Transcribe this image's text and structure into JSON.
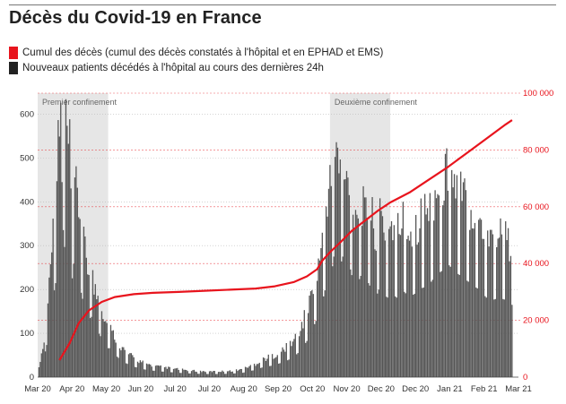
{
  "title": "Décès du Covid-19 en France",
  "legend": [
    {
      "label": "Cumul des décès (cumul des décès constatés à l'hôpital et en EPHAD et EMS)",
      "color": "#e8141d"
    },
    {
      "label": "Nouveaux patients décédés à l'hôpital au cours des dernières 24h",
      "color": "#222222"
    }
  ],
  "chart_data": {
    "type": "bar+line",
    "title": "Décès du Covid-19 en France",
    "x_tick_labels": [
      "Mar 20",
      "Apr 20",
      "May 20",
      "Jun 20",
      "Jul 20",
      "Jul 20",
      "Aug 20",
      "Sep 20",
      "Oct 20",
      "Nov 20",
      "Dec 20",
      "Dec 20",
      "Jan 21",
      "Feb 21",
      "Mar 21"
    ],
    "left_axis": {
      "range": [
        0,
        650
      ],
      "ticks": [
        0,
        100,
        200,
        300,
        400,
        500,
        600
      ],
      "tick_labels": [
        "0",
        "100",
        "200",
        "300",
        "400",
        "500",
        "600"
      ]
    },
    "right_axis": {
      "range": [
        0,
        100000
      ],
      "ticks": [
        0,
        20000,
        40000,
        60000,
        80000,
        100000
      ],
      "tick_labels": [
        "0",
        "20 000",
        "40 000",
        "60 000",
        "80 000",
        "100 000"
      ],
      "color": "#e8141d"
    },
    "shaded_periods": [
      {
        "label": "Premier confinement",
        "start_day": 0,
        "end_day": 55
      },
      {
        "label": "Deuxième confinement",
        "start_day": 228,
        "end_day": 275
      }
    ],
    "series": [
      {
        "name": "Nouveaux patients décédés à l'hôpital au cours des dernières 24h",
        "kind": "bar",
        "axis": "left",
        "color": "#555555",
        "start": "2020-03-01",
        "points": [
          [
            0,
            0
          ],
          [
            2,
            40
          ],
          [
            5,
            80
          ],
          [
            8,
            160
          ],
          [
            10,
            300
          ],
          [
            12,
            330
          ],
          [
            14,
            390
          ],
          [
            16,
            520
          ],
          [
            18,
            600
          ],
          [
            19,
            470
          ],
          [
            20,
            610
          ],
          [
            21,
            540
          ],
          [
            22,
            605
          ],
          [
            23,
            560
          ],
          [
            24,
            480
          ],
          [
            25,
            560
          ],
          [
            26,
            430
          ],
          [
            27,
            410
          ],
          [
            28,
            470
          ],
          [
            30,
            420
          ],
          [
            32,
            390
          ],
          [
            34,
            350
          ],
          [
            36,
            300
          ],
          [
            38,
            270
          ],
          [
            40,
            240
          ],
          [
            42,
            250
          ],
          [
            44,
            200
          ],
          [
            46,
            190
          ],
          [
            48,
            180
          ],
          [
            50,
            160
          ],
          [
            52,
            140
          ],
          [
            54,
            120
          ],
          [
            56,
            120
          ],
          [
            58,
            100
          ],
          [
            60,
            95
          ],
          [
            62,
            85
          ],
          [
            65,
            70
          ],
          [
            68,
            60
          ],
          [
            72,
            50
          ],
          [
            76,
            42
          ],
          [
            80,
            36
          ],
          [
            85,
            30
          ],
          [
            90,
            27
          ],
          [
            95,
            24
          ],
          [
            100,
            22
          ],
          [
            110,
            18
          ],
          [
            120,
            15
          ],
          [
            130,
            13
          ],
          [
            140,
            13
          ],
          [
            150,
            14
          ],
          [
            160,
            18
          ],
          [
            165,
            25
          ],
          [
            170,
            30
          ],
          [
            175,
            40
          ],
          [
            180,
            45
          ],
          [
            185,
            50
          ],
          [
            190,
            60
          ],
          [
            195,
            70
          ],
          [
            200,
            85
          ],
          [
            205,
            110
          ],
          [
            210,
            150
          ],
          [
            213,
            180
          ],
          [
            216,
            220
          ],
          [
            219,
            260
          ],
          [
            222,
            310
          ],
          [
            224,
            360
          ],
          [
            226,
            420
          ],
          [
            228,
            440
          ],
          [
            230,
            460
          ],
          [
            232,
            540
          ],
          [
            234,
            500
          ],
          [
            236,
            460
          ],
          [
            238,
            500
          ],
          [
            240,
            430
          ],
          [
            243,
            470
          ],
          [
            246,
            400
          ],
          [
            249,
            380
          ],
          [
            252,
            420
          ],
          [
            255,
            360
          ],
          [
            258,
            390
          ],
          [
            261,
            360
          ],
          [
            264,
            330
          ],
          [
            267,
            380
          ],
          [
            270,
            340
          ],
          [
            273,
            330
          ],
          [
            276,
            350
          ],
          [
            280,
            330
          ],
          [
            285,
            360
          ],
          [
            290,
            330
          ],
          [
            295,
            350
          ],
          [
            300,
            370
          ],
          [
            305,
            380
          ],
          [
            310,
            420
          ],
          [
            315,
            440
          ],
          [
            320,
            470
          ],
          [
            325,
            440
          ],
          [
            330,
            420
          ],
          [
            335,
            400
          ],
          [
            340,
            380
          ],
          [
            345,
            360
          ],
          [
            350,
            330
          ],
          [
            355,
            320
          ],
          [
            360,
            330
          ],
          [
            365,
            320
          ],
          [
            368,
            300
          ],
          [
            370,
            300
          ]
        ]
      },
      {
        "name": "Cumul des décès (cumul des décès constatés à l'hôpital et en EPHAD et EMS)",
        "kind": "line",
        "axis": "right",
        "color": "#e8141d",
        "start": "2020-03-01",
        "points": [
          [
            17,
            6000
          ],
          [
            25,
            12000
          ],
          [
            32,
            19000
          ],
          [
            40,
            23500
          ],
          [
            50,
            26500
          ],
          [
            60,
            28200
          ],
          [
            75,
            29200
          ],
          [
            90,
            29700
          ],
          [
            110,
            30000
          ],
          [
            130,
            30400
          ],
          [
            150,
            30800
          ],
          [
            170,
            31200
          ],
          [
            185,
            32000
          ],
          [
            200,
            33500
          ],
          [
            210,
            35500
          ],
          [
            218,
            38000
          ],
          [
            222,
            41000
          ],
          [
            228,
            44000
          ],
          [
            235,
            47000
          ],
          [
            245,
            51500
          ],
          [
            255,
            55000
          ],
          [
            265,
            58500
          ],
          [
            275,
            61500
          ],
          [
            290,
            65000
          ],
          [
            305,
            69500
          ],
          [
            320,
            74000
          ],
          [
            335,
            79000
          ],
          [
            350,
            84000
          ],
          [
            365,
            89000
          ],
          [
            370,
            90500
          ]
        ]
      }
    ]
  }
}
